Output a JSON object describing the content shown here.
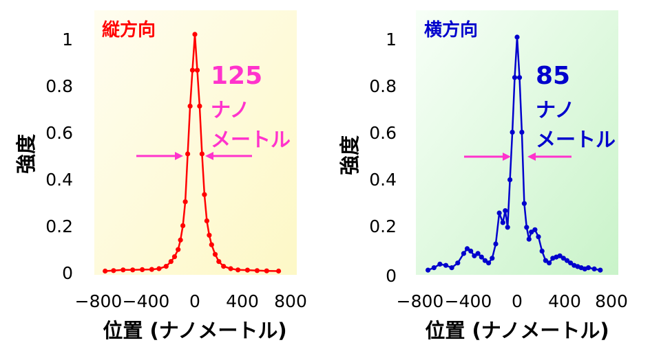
{
  "colors": {
    "left_series": "#ff0000",
    "right_series": "#0000cc",
    "fwhm_arrow": "#ff33cc",
    "left_bg_light": "#fffdf0",
    "left_bg_dark": "#fdf8c6",
    "right_bg_light": "#f7fff7",
    "right_bg_dark": "#c9f3c9"
  },
  "chart_data": [
    {
      "type": "line",
      "title": "縦方向",
      "xlabel": "位置 (ナノメートル)",
      "ylabel": "強度",
      "xlim": [
        -800,
        800
      ],
      "ylim": [
        0,
        1
      ],
      "xticks": [
        "−800",
        "−400",
        "0",
        "400",
        "800"
      ],
      "yticks": [
        "0",
        "0.2",
        "0.4",
        "0.6",
        "0.8",
        "1"
      ],
      "annotation": {
        "value": "125",
        "line1": "ナノ",
        "line2": "メートル"
      },
      "series": [
        {
          "x": [
            -750,
            -680,
            -600,
            -520,
            -440,
            -360,
            -300,
            -240,
            -200,
            -170,
            -140,
            -120,
            -100,
            -80,
            -60,
            -40,
            -20,
            0,
            20,
            40,
            60,
            80,
            100,
            120,
            140,
            170,
            200,
            240,
            300,
            360,
            440,
            520,
            600,
            700
          ],
          "y": [
            0.01,
            0.012,
            0.015,
            0.015,
            0.016,
            0.017,
            0.02,
            0.03,
            0.05,
            0.07,
            0.1,
            0.14,
            0.2,
            0.3,
            0.5,
            0.7,
            0.85,
            1.0,
            0.85,
            0.7,
            0.5,
            0.33,
            0.22,
            0.16,
            0.12,
            0.08,
            0.05,
            0.03,
            0.02,
            0.015,
            0.014,
            0.012,
            0.011,
            0.01
          ]
        }
      ]
    },
    {
      "type": "line",
      "title": "横方向",
      "xlabel": "位置 (ナノメートル)",
      "ylabel": "強度",
      "xlim": [
        -800,
        800
      ],
      "ylim": [
        0,
        1
      ],
      "xticks": [
        "−800",
        "−400",
        "0",
        "400",
        "800"
      ],
      "yticks": [
        "0",
        "0.2",
        "0.4",
        "0.6",
        "0.8",
        "1"
      ],
      "annotation": {
        "value": "85",
        "line1": "ナノ",
        "line2": "メートル"
      },
      "series": [
        {
          "x": [
            -750,
            -700,
            -650,
            -600,
            -550,
            -500,
            -450,
            -420,
            -390,
            -360,
            -330,
            -300,
            -270,
            -240,
            -210,
            -180,
            -150,
            -120,
            -100,
            -80,
            -60,
            -40,
            -20,
            0,
            20,
            40,
            60,
            80,
            100,
            120,
            150,
            180,
            210,
            240,
            270,
            300,
            330,
            360,
            390,
            420,
            450,
            480,
            510,
            540,
            570,
            600,
            650,
            700
          ],
          "y": [
            0.02,
            0.03,
            0.045,
            0.04,
            0.03,
            0.05,
            0.09,
            0.11,
            0.1,
            0.08,
            0.09,
            0.075,
            0.06,
            0.05,
            0.07,
            0.13,
            0.26,
            0.22,
            0.27,
            0.2,
            0.4,
            0.6,
            0.83,
            1.0,
            0.83,
            0.6,
            0.3,
            0.2,
            0.15,
            0.18,
            0.19,
            0.16,
            0.1,
            0.06,
            0.05,
            0.07,
            0.075,
            0.08,
            0.07,
            0.06,
            0.05,
            0.04,
            0.035,
            0.03,
            0.025,
            0.03,
            0.025,
            0.02
          ]
        }
      ]
    }
  ]
}
